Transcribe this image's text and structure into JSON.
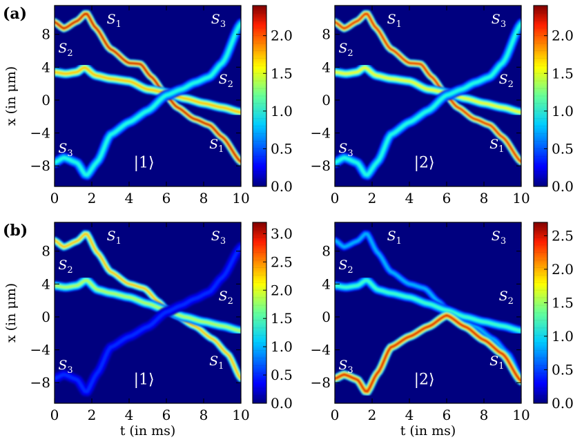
{
  "figure": {
    "panel_labels": [
      "(a)",
      "(b)"
    ],
    "state_labels": [
      "|1⟩",
      "|2⟩"
    ],
    "background_color": "#00007f"
  },
  "chart_data": [
    {
      "type": "heatmap",
      "row": "(a)",
      "state": "|1⟩",
      "xlabel": "",
      "ylabel": "x (in μm)",
      "xlim": [
        0,
        10
      ],
      "ylim": [
        -10.5,
        11.5
      ],
      "xticks": [
        "0",
        "2",
        "4",
        "6",
        "8",
        "10"
      ],
      "yticks": [
        "8",
        "4",
        "0",
        "−4",
        "−8"
      ],
      "colorbar": {
        "min": 0.0,
        "max": 2.4,
        "ticks": [
          "0.0",
          "0.5",
          "1.0",
          "1.5",
          "2.0"
        ]
      },
      "annotations": [
        {
          "name": "S",
          "sub": "1",
          "t": 2.8,
          "x": 9.3
        },
        {
          "name": "S",
          "sub": "2",
          "t": 0.2,
          "x": 5.8
        },
        {
          "name": "S",
          "sub": "3",
          "t": 0.2,
          "x": -6.4
        },
        {
          "name": "S",
          "sub": "3",
          "t": 8.4,
          "x": 9.3
        },
        {
          "name": "S",
          "sub": "2",
          "t": 8.8,
          "x": 2.0
        },
        {
          "name": "S",
          "sub": "1",
          "t": 8.3,
          "x": -5.9
        }
      ],
      "series": [
        {
          "name": "S1",
          "points": [
            [
              0,
              9.5
            ],
            [
              0.5,
              8.7
            ],
            [
              1.2,
              9.6
            ],
            [
              1.7,
              10.6
            ],
            [
              2.2,
              8.8
            ],
            [
              3,
              6.2
            ],
            [
              4,
              4.5
            ],
            [
              4.6,
              4.4
            ],
            [
              5.2,
              2.8
            ],
            [
              6,
              0.5
            ],
            [
              6.6,
              -0.9
            ],
            [
              7.5,
              -2.3
            ],
            [
              8.3,
              -3.0
            ],
            [
              9,
              -4.5
            ],
            [
              10,
              -7.5
            ]
          ],
          "peak": 2.3,
          "width": 0.45
        },
        {
          "name": "S2",
          "points": [
            [
              0,
              3.4
            ],
            [
              0.6,
              3.2
            ],
            [
              1.2,
              3.4
            ],
            [
              1.6,
              4.0
            ],
            [
              2.2,
              3.0
            ],
            [
              3,
              2.6
            ],
            [
              4,
              2.3
            ],
            [
              5,
              1.3
            ],
            [
              6,
              0.9
            ],
            [
              7,
              0.2
            ],
            [
              8,
              -0.4
            ],
            [
              9,
              -0.9
            ],
            [
              10,
              -1.5
            ]
          ],
          "peak": 1.7,
          "width": 0.55
        },
        {
          "name": "S3",
          "points": [
            [
              0,
              -7.6
            ],
            [
              0.5,
              -7.0
            ],
            [
              1.2,
              -7.6
            ],
            [
              1.7,
              -9.2
            ],
            [
              2.3,
              -7.5
            ],
            [
              3,
              -4.2
            ],
            [
              4,
              -2.7
            ],
            [
              5,
              -1.3
            ],
            [
              6,
              0.6
            ],
            [
              6.8,
              1.3
            ],
            [
              7.5,
              2.1
            ],
            [
              8.3,
              2.8
            ],
            [
              9,
              4.5
            ],
            [
              10,
              9.3
            ]
          ],
          "peak": 1.0,
          "width": 0.6
        }
      ]
    },
    {
      "type": "heatmap",
      "row": "(a)",
      "state": "|2⟩",
      "xlabel": "",
      "ylabel": "",
      "xlim": [
        0,
        10
      ],
      "ylim": [
        -10.5,
        11.5
      ],
      "xticks": [
        "0",
        "2",
        "4",
        "6",
        "8",
        "10"
      ],
      "yticks": [
        "8",
        "4",
        "0",
        "−4",
        "−8"
      ],
      "colorbar": {
        "min": 0.0,
        "max": 2.4,
        "ticks": [
          "0.0",
          "0.5",
          "1.0",
          "1.5",
          "2.0"
        ]
      },
      "annotations": [
        {
          "name": "S",
          "sub": "1",
          "t": 2.8,
          "x": 9.3
        },
        {
          "name": "S",
          "sub": "2",
          "t": 0.2,
          "x": 5.8
        },
        {
          "name": "S",
          "sub": "3",
          "t": 0.2,
          "x": -6.4
        },
        {
          "name": "S",
          "sub": "3",
          "t": 8.4,
          "x": 9.3
        },
        {
          "name": "S",
          "sub": "2",
          "t": 8.8,
          "x": 2.0
        },
        {
          "name": "S",
          "sub": "1",
          "t": 8.3,
          "x": -5.9
        }
      ],
      "series": [
        {
          "name": "S1",
          "points": [
            [
              0,
              9.5
            ],
            [
              0.5,
              8.7
            ],
            [
              1.2,
              9.6
            ],
            [
              1.7,
              10.6
            ],
            [
              2.2,
              8.8
            ],
            [
              3,
              6.2
            ],
            [
              4,
              4.5
            ],
            [
              4.6,
              4.4
            ],
            [
              5.2,
              2.8
            ],
            [
              6,
              0.5
            ],
            [
              6.6,
              -0.9
            ],
            [
              7.5,
              -2.3
            ],
            [
              8.3,
              -3.0
            ],
            [
              9,
              -4.5
            ],
            [
              10,
              -7.5
            ]
          ],
          "peak": 2.2,
          "width": 0.45
        },
        {
          "name": "S2",
          "points": [
            [
              0,
              3.4
            ],
            [
              0.6,
              3.2
            ],
            [
              1.2,
              3.4
            ],
            [
              1.6,
              4.0
            ],
            [
              2.2,
              3.0
            ],
            [
              3,
              2.6
            ],
            [
              4,
              2.3
            ],
            [
              5,
              1.3
            ],
            [
              6,
              0.9
            ],
            [
              7,
              0.2
            ],
            [
              8,
              -0.4
            ],
            [
              9,
              -0.9
            ],
            [
              10,
              -1.5
            ]
          ],
          "peak": 1.5,
          "width": 0.55
        },
        {
          "name": "S3",
          "points": [
            [
              0,
              -7.6
            ],
            [
              0.5,
              -7.0
            ],
            [
              1.2,
              -7.6
            ],
            [
              1.7,
              -9.2
            ],
            [
              2.3,
              -7.5
            ],
            [
              3,
              -4.2
            ],
            [
              4,
              -2.7
            ],
            [
              5,
              -1.3
            ],
            [
              6,
              0.6
            ],
            [
              6.8,
              1.3
            ],
            [
              7.5,
              2.1
            ],
            [
              8.3,
              2.8
            ],
            [
              9,
              4.5
            ],
            [
              10,
              9.3
            ]
          ],
          "peak": 1.0,
          "width": 0.6
        }
      ]
    },
    {
      "type": "heatmap",
      "row": "(b)",
      "state": "|1⟩",
      "xlabel": "t (in ms)",
      "ylabel": "x (in μm)",
      "xlim": [
        0,
        10
      ],
      "ylim": [
        -10.5,
        11.5
      ],
      "xticks": [
        "0",
        "2",
        "4",
        "6",
        "8",
        "10"
      ],
      "yticks": [
        "8",
        "4",
        "0",
        "−4",
        "−8"
      ],
      "colorbar": {
        "min": 0.0,
        "max": 3.2,
        "ticks": [
          "0.0",
          "0.5",
          "1.0",
          "1.5",
          "2.0",
          "2.5",
          "3.0"
        ]
      },
      "annotations": [
        {
          "name": "S",
          "sub": "1",
          "t": 2.8,
          "x": 9.3
        },
        {
          "name": "S",
          "sub": "2",
          "t": 0.2,
          "x": 5.8
        },
        {
          "name": "S",
          "sub": "3",
          "t": 0.2,
          "x": -6.4
        },
        {
          "name": "S",
          "sub": "3",
          "t": 8.4,
          "x": 9.3
        },
        {
          "name": "S",
          "sub": "2",
          "t": 8.8,
          "x": 2.0
        },
        {
          "name": "S",
          "sub": "1",
          "t": 8.3,
          "x": -5.9
        }
      ],
      "series": [
        {
          "name": "S1",
          "points": [
            [
              0,
              9.3
            ],
            [
              0.5,
              8.5
            ],
            [
              1.2,
              9.2
            ],
            [
              1.7,
              10.2
            ],
            [
              2.3,
              7.8
            ],
            [
              3,
              5.5
            ],
            [
              4,
              4.0
            ],
            [
              4.8,
              3.5
            ],
            [
              5.6,
              1.8
            ],
            [
              6,
              0.9
            ],
            [
              6.5,
              0.2
            ],
            [
              7.5,
              -1.1
            ],
            [
              8.5,
              -2.7
            ],
            [
              9.3,
              -4.5
            ],
            [
              10,
              -7.5
            ]
          ],
          "peak": 2.3,
          "width": 0.45
        },
        {
          "name": "S2",
          "points": [
            [
              0,
              3.8
            ],
            [
              0.6,
              3.6
            ],
            [
              1.2,
              3.8
            ],
            [
              1.7,
              4.5
            ],
            [
              2.3,
              3.3
            ],
            [
              3,
              2.9
            ],
            [
              4,
              2.4
            ],
            [
              5,
              1.6
            ],
            [
              6,
              0.8
            ],
            [
              7,
              0.0
            ],
            [
              8,
              -0.6
            ],
            [
              9,
              -1.1
            ],
            [
              10,
              -1.7
            ]
          ],
          "peak": 1.8,
          "width": 0.55
        },
        {
          "name": "S3",
          "points": [
            [
              0,
              -7.5
            ],
            [
              0.5,
              -7.0
            ],
            [
              1.2,
              -7.6
            ],
            [
              1.7,
              -9.2
            ],
            [
              2.3,
              -6.8
            ],
            [
              3,
              -3.7
            ],
            [
              4,
              -2.4
            ],
            [
              5,
              -1.2
            ],
            [
              6,
              0.6
            ],
            [
              6.8,
              1.4
            ],
            [
              7.5,
              2.2
            ],
            [
              8.3,
              3.0
            ],
            [
              9,
              4.8
            ],
            [
              10,
              8.5
            ]
          ],
          "peak": 0.55,
          "width": 0.6
        }
      ]
    },
    {
      "type": "heatmap",
      "row": "(b)",
      "state": "|2⟩",
      "xlabel": "t (in ms)",
      "ylabel": "",
      "xlim": [
        0,
        10
      ],
      "ylim": [
        -10.5,
        11.5
      ],
      "xticks": [
        "0",
        "2",
        "4",
        "6",
        "8",
        "10"
      ],
      "yticks": [
        "8",
        "4",
        "0",
        "−4",
        "−8"
      ],
      "colorbar": {
        "min": 0.0,
        "max": 2.7,
        "ticks": [
          "0.0",
          "0.5",
          "1.0",
          "1.5",
          "2.0",
          "2.5"
        ]
      },
      "annotations": [
        {
          "name": "S",
          "sub": "1",
          "t": 2.8,
          "x": 9.3
        },
        {
          "name": "S",
          "sub": "2",
          "t": 0.2,
          "x": 5.8
        },
        {
          "name": "S",
          "sub": "3",
          "t": 0.2,
          "x": -6.4
        },
        {
          "name": "S",
          "sub": "3",
          "t": 8.4,
          "x": 9.3
        },
        {
          "name": "S",
          "sub": "2",
          "t": 8.8,
          "x": 2.0
        },
        {
          "name": "S",
          "sub": "1",
          "t": 8.3,
          "x": -5.9
        }
      ],
      "series": [
        {
          "name": "S1",
          "points": [
            [
              0,
              9.3
            ],
            [
              0.5,
              8.5
            ],
            [
              1.2,
              9.2
            ],
            [
              1.7,
              10.2
            ],
            [
              2.3,
              7.8
            ],
            [
              3,
              5.5
            ],
            [
              4,
              4.0
            ],
            [
              4.8,
              3.5
            ],
            [
              5.6,
              1.8
            ],
            [
              6,
              0.9
            ],
            [
              6.5,
              0.2
            ],
            [
              7.5,
              -1.1
            ],
            [
              8.5,
              -2.7
            ],
            [
              9.3,
              -4.5
            ],
            [
              10,
              -7.5
            ]
          ],
          "peak": 0.85,
          "width": 0.45
        },
        {
          "name": "S2",
          "points": [
            [
              0,
              3.8
            ],
            [
              0.6,
              3.6
            ],
            [
              1.2,
              3.8
            ],
            [
              1.7,
              4.5
            ],
            [
              2.3,
              3.3
            ],
            [
              3,
              2.9
            ],
            [
              4,
              2.4
            ],
            [
              5,
              1.6
            ],
            [
              6,
              0.8
            ],
            [
              7,
              0.0
            ],
            [
              8,
              -0.6
            ],
            [
              9,
              -1.1
            ],
            [
              10,
              -1.7
            ]
          ],
          "peak": 1.2,
          "width": 0.55
        },
        {
          "name": "S3",
          "points": [
            [
              0,
              -7.5
            ],
            [
              0.5,
              -7.0
            ],
            [
              1.2,
              -7.6
            ],
            [
              1.7,
              -9.2
            ],
            [
              2.3,
              -6.8
            ],
            [
              3,
              -3.7
            ],
            [
              4,
              -2.4
            ],
            [
              5,
              -1.2
            ],
            [
              6,
              0.2
            ],
            [
              7,
              -1.2
            ],
            [
              8,
              -2.8
            ],
            [
              9,
              -4.5
            ],
            [
              10,
              -7.8
            ]
          ],
          "peak": 2.5,
          "width": 0.5
        }
      ]
    }
  ]
}
